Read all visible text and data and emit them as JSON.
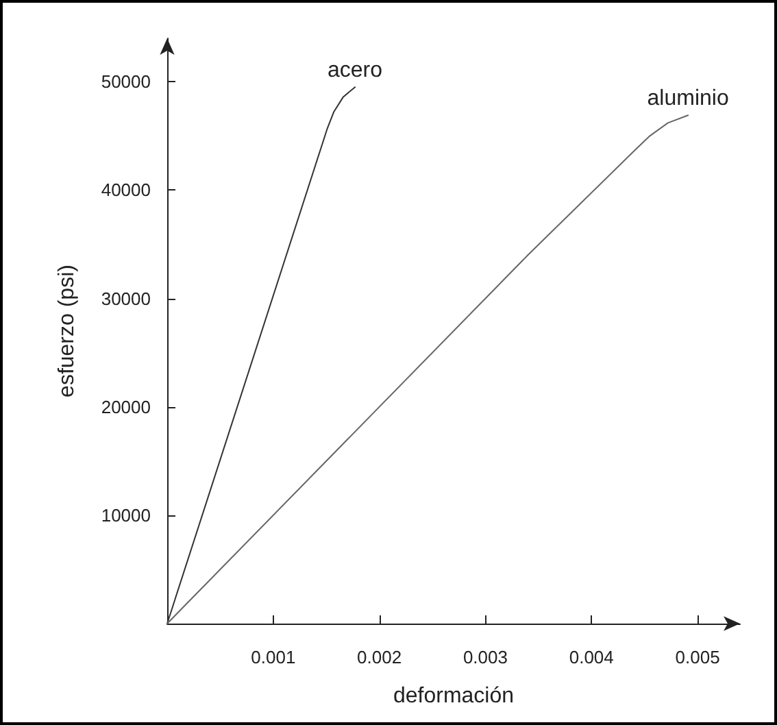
{
  "chart_data": {
    "type": "line",
    "xlabel": "deformación",
    "ylabel": "esfuerzo (psi)",
    "xlim": [
      0,
      0.0054
    ],
    "ylim": [
      0,
      54000
    ],
    "xticks": [
      0.001,
      0.002,
      0.003,
      0.004,
      0.005
    ],
    "yticks": [
      10000,
      20000,
      30000,
      40000,
      50000
    ],
    "grid": false,
    "series": [
      {
        "name": "acero",
        "color": "#333333",
        "x": [
          0,
          0.00151,
          0.00157,
          0.00166,
          0.00177
        ],
        "values": [
          0,
          45700,
          47200,
          48600,
          49500
        ]
      },
      {
        "name": "aluminio",
        "color": "#666666",
        "x": [
          0,
          0.0034,
          0.00439,
          0.00455,
          0.00472,
          0.00491
        ],
        "values": [
          0,
          34000,
          43500,
          45000,
          46200,
          46900
        ]
      }
    ]
  }
}
